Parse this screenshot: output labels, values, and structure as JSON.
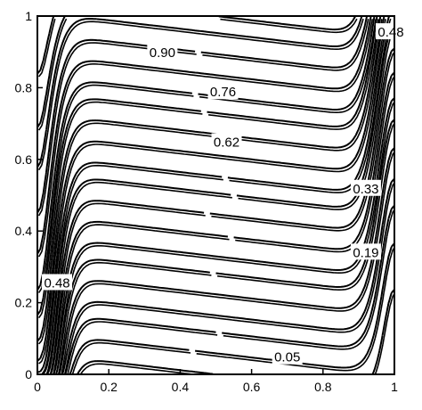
{
  "chart_data": {
    "type": "contour",
    "title": "",
    "xlabel": "",
    "ylabel": "",
    "xlim": [
      0,
      1
    ],
    "ylim": [
      0,
      1
    ],
    "grid": false,
    "legend": "none",
    "x_ticks": [
      "0",
      "0.2",
      "0.4",
      "0.6",
      "0.8",
      "1"
    ],
    "y_ticks": [
      "0",
      "0.2",
      "0.4",
      "0.6",
      "0.8",
      "1"
    ],
    "levels": [
      0.05,
      0.1,
      0.15,
      0.19,
      0.24,
      0.29,
      0.33,
      0.38,
      0.43,
      0.48,
      0.52,
      0.57,
      0.62,
      0.67,
      0.71,
      0.76,
      0.81,
      0.86,
      0.9,
      0.95
    ],
    "labeled_levels": [
      {
        "text": "0.90",
        "x": 0.35,
        "y": 0.898
      },
      {
        "text": "0.76",
        "x": 0.52,
        "y": 0.788
      },
      {
        "text": "0.62",
        "x": 0.53,
        "y": 0.648
      },
      {
        "text": "0.48",
        "x": 0.99,
        "y": 0.955
      },
      {
        "text": "0.48",
        "x": 0.055,
        "y": 0.255
      },
      {
        "text": "0.33",
        "x": 0.92,
        "y": 0.518
      },
      {
        "text": "0.19",
        "x": 0.92,
        "y": 0.34
      },
      {
        "text": "0.05",
        "x": 0.7,
        "y": 0.048
      }
    ],
    "series": [
      {
        "style": "solid",
        "color": "#000000"
      },
      {
        "style": "dash-dot",
        "color": "#000000"
      }
    ]
  }
}
